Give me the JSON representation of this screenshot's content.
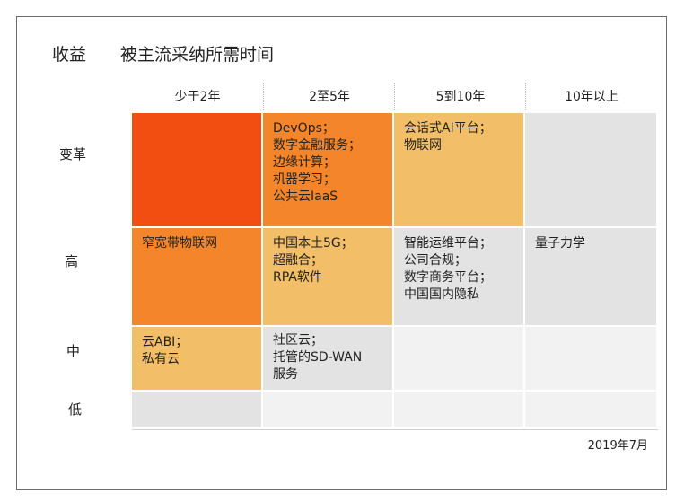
{
  "header": {
    "benefit_label": "收益",
    "title": "被主流采纳所需时间"
  },
  "columns": [
    "少于2年",
    "2至5年",
    "5到10年",
    "10年以上"
  ],
  "rows": [
    "变革",
    "高",
    "中",
    "低"
  ],
  "colors": {
    "red_orange": "#f24e12",
    "orange": "#f4852a",
    "light_orange": "#f2be68",
    "gray": "#e3e3e3",
    "light_gray": "#f2f2f2"
  },
  "cells": {
    "r0c0": "",
    "r0c1": "DevOps；\n数字金融服务；\n边缘计算；\n机器学习；\n公共云IaaS",
    "r0c2": "会话式AI平台；\n物联网",
    "r0c3": "",
    "r1c0": "窄宽带物联网",
    "r1c1": "中国本土5G；\n超融合；\nRPA软件",
    "r1c2": "智能运维平台；\n公司合规；\n数字商务平台；\n中国国内隐私",
    "r1c3": "量子力学",
    "r2c0": "云ABI；\n私有云",
    "r2c1": "社区云；\n托管的SD-WAN\n服务",
    "r2c2": "",
    "r2c3": "",
    "r3c0": "",
    "r3c1": "",
    "r3c2": "",
    "r3c3": ""
  },
  "footer": {
    "date": "2019年7月"
  }
}
